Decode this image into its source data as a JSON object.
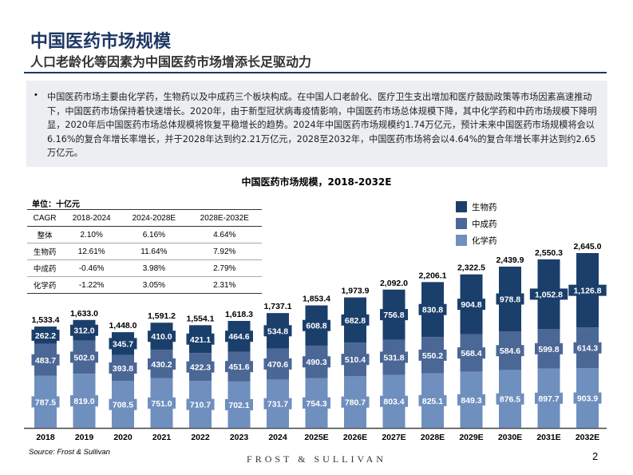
{
  "header": {
    "title": "中国医药市场规模",
    "subtitle": "人口老龄化等因素为中国医药市场增添长足驱动力"
  },
  "summary": {
    "bullet": "•",
    "text": "中国医药市场主要由化学药，生物药以及中成药三个板块构成。在中国人口老龄化、医疗卫生支出增加和医疗鼓励政策等市场因素高速推动下，中国医药市场保持着快速增长。2020年，由于新型冠状病毒疫情影响，中国医药市场总体规模下降，其中化学药和中药市场规模下降明显，2020年后中国医药市场总体规模将恢复平稳增长的趋势。2024年中国医药市场规模约1.74万亿元，预计未来中国医药市场规模将会以6.16%的复合年增长率增长，并于2028年达到约2.21万亿元，2028至2032年，中国医药市场将会以4.64%的复合年增长率并达到约2.65万亿元。"
  },
  "cagr_table": {
    "unit": "单位：十亿元",
    "headers": [
      "CAGR",
      "2018-2024",
      "2024-2028E",
      "2028E-2032E"
    ],
    "rows": [
      [
        "整体",
        "2.10%",
        "6.16%",
        "4.64%"
      ],
      [
        "生物药",
        "12.61%",
        "11.64%",
        "7.92%"
      ],
      [
        "中成药",
        "-0.46%",
        "3.98%",
        "2.79%"
      ],
      [
        "化学药",
        "-1.22%",
        "3.05%",
        "2.31%"
      ]
    ]
  },
  "chart_data": {
    "type": "bar",
    "stacked": true,
    "title": "中国医药市场规模，2018-2032E",
    "legend_position": "top-right",
    "categories": [
      "2018",
      "2019",
      "2020",
      "2021",
      "2022",
      "2023",
      "2024",
      "2025E",
      "2026E",
      "2027E",
      "2028E",
      "2029E",
      "2030E",
      "2031E",
      "2032E"
    ],
    "series": [
      {
        "name": "化学药",
        "color": "#6f8fbe",
        "values": [
          787.5,
          819.0,
          708.5,
          751.0,
          710.7,
          702.1,
          731.7,
          754.3,
          780.7,
          803.4,
          825.1,
          849.3,
          876.5,
          897.7,
          903.9
        ]
      },
      {
        "name": "中成药",
        "color": "#4a6796",
        "values": [
          483.7,
          502.0,
          393.8,
          430.2,
          422.3,
          451.6,
          470.6,
          490.3,
          510.4,
          531.8,
          550.2,
          568.4,
          584.6,
          599.8,
          614.3
        ]
      },
      {
        "name": "生物药",
        "color": "#1b3f6b",
        "values": [
          262.2,
          312.0,
          345.7,
          410.0,
          421.1,
          464.6,
          534.8,
          608.8,
          682.8,
          756.8,
          830.8,
          904.8,
          978.8,
          1052.8,
          1126.8
        ]
      }
    ],
    "totals": [
      "1,533.4",
      "1,633.0",
      "1,448.0",
      "1,591.2",
      "1,554.1",
      "1,618.3",
      "1,737.1",
      "1,853.4",
      "1,973.9",
      "2,092.0",
      "2,206.1",
      "2,322.5",
      "2,439.9",
      "2,550.3",
      "2,645.0"
    ],
    "segment_labels": [
      [
        "787.5",
        "819.0",
        "708.5",
        "751.0",
        "710.7",
        "702.1",
        "731.7",
        "754.3",
        "780.7",
        "803.4",
        "825.1",
        "849.3",
        "876.5",
        "897.7",
        "903.9"
      ],
      [
        "483.7",
        "502.0",
        "393.8",
        "430.2",
        "422.3",
        "451.6",
        "470.6",
        "490.3",
        "510.4",
        "531.8",
        "550.2",
        "568.4",
        "584.6",
        "599.8",
        "614.3"
      ],
      [
        "262.2",
        "312.0",
        "345.7",
        "410.0",
        "421.1",
        "464.6",
        "534.8",
        "608.8",
        "682.8",
        "756.8",
        "830.8",
        "904.8",
        "978.8",
        "1,052.8",
        "1,126.8"
      ]
    ],
    "legend_order": [
      "生物药",
      "中成药",
      "化学药"
    ]
  },
  "footer": {
    "source": "Source: Frost & Sullivan",
    "brand": "FROST & SULLIVAN",
    "page": "2"
  }
}
